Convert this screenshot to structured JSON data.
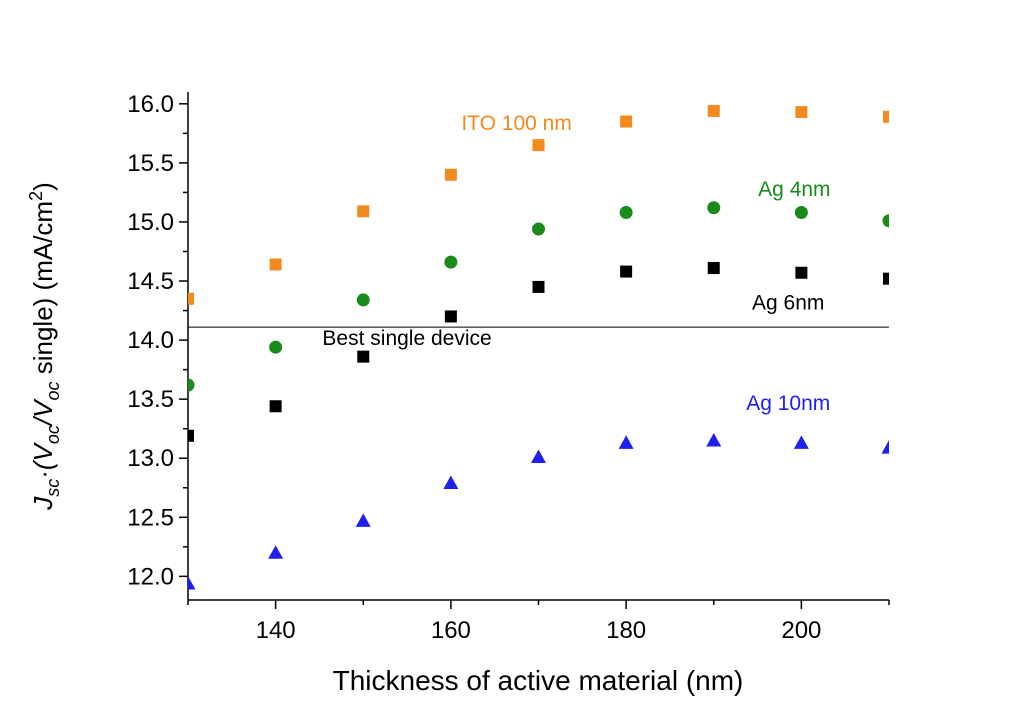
{
  "chart_data": {
    "type": "scatter",
    "xlabel": "Thickness of active material (nm)",
    "ylabel": {
      "main": "J",
      "main_sub": "sc",
      "mid": "·(V",
      "v1_sub": "oc",
      "slash": "/V",
      "v2_sub": "oc",
      "tail": " single) (mA/cm",
      "sup": "2",
      "close": ")"
    },
    "xlim": [
      130,
      210
    ],
    "ylim": [
      11.8,
      16.1
    ],
    "x_ticks": [
      "140",
      "160",
      "180",
      "200"
    ],
    "y_ticks": [
      "12.0",
      "12.5",
      "13.0",
      "13.5",
      "14.0",
      "14.5",
      "15.0",
      "15.5",
      "16.0"
    ],
    "series": [
      {
        "name": "ITO 100 nm",
        "marker": "square",
        "color": "#f28a1e",
        "x": [
          130,
          140,
          150,
          160,
          170,
          180,
          190,
          200,
          210
        ],
        "y": [
          14.35,
          14.64,
          15.09,
          15.4,
          15.65,
          15.85,
          15.94,
          15.93,
          15.89
        ]
      },
      {
        "name": "Ag 4nm",
        "marker": "circle",
        "color": "#1a8a1a",
        "x": [
          130,
          140,
          150,
          160,
          170,
          180,
          190,
          200,
          210
        ],
        "y": [
          13.62,
          13.94,
          14.34,
          14.66,
          14.94,
          15.08,
          15.12,
          15.08,
          15.01
        ]
      },
      {
        "name": "Ag 6nm",
        "marker": "square",
        "color": "#000000",
        "x": [
          130,
          140,
          150,
          160,
          170,
          180,
          190,
          200,
          210
        ],
        "y": [
          13.19,
          13.44,
          13.86,
          14.2,
          14.45,
          14.58,
          14.61,
          14.57,
          14.52
        ]
      },
      {
        "name": "Ag 10nm",
        "marker": "triangle",
        "color": "#1f1ff0",
        "x": [
          130,
          140,
          150,
          160,
          170,
          180,
          190,
          200,
          210
        ],
        "y": [
          11.94,
          12.2,
          12.47,
          12.79,
          13.01,
          13.13,
          13.15,
          13.13,
          13.09
        ]
      }
    ],
    "reference_line": {
      "label": "Best single device",
      "y": 14.11,
      "color": "#000000"
    },
    "annotations": [
      {
        "text": "ITO 100 nm",
        "color": "#f28a1e",
        "x": 167.5,
        "y": 15.78
      },
      {
        "text": "Ag 4nm",
        "color": "#1a8a1a",
        "x": 199.2,
        "y": 15.22
      },
      {
        "text": "Ag 6nm",
        "color": "#000000",
        "x": 198.5,
        "y": 14.26
      },
      {
        "text": "Best single device",
        "color": "#000000",
        "x": 155.0,
        "y": 13.96
      },
      {
        "text": "Ag 10nm",
        "color": "#1f1ff0",
        "x": 198.5,
        "y": 13.41
      }
    ],
    "grid": false,
    "legend": "none"
  }
}
